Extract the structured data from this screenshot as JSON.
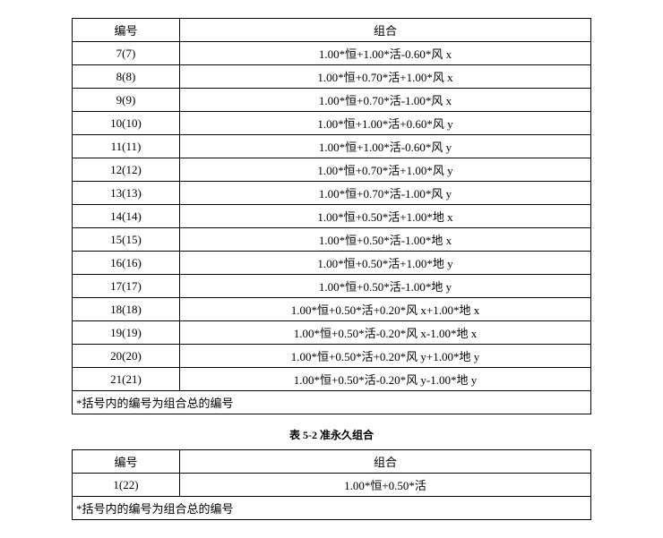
{
  "table1": {
    "header_id": "编号",
    "header_combo": "组合",
    "rows": [
      {
        "id": "7(7)",
        "combo": "1.00*恒+1.00*活-0.60*风 x"
      },
      {
        "id": "8(8)",
        "combo": "1.00*恒+0.70*活+1.00*风 x"
      },
      {
        "id": "9(9)",
        "combo": "1.00*恒+0.70*活-1.00*风 x"
      },
      {
        "id": "10(10)",
        "combo": "1.00*恒+1.00*活+0.60*风 y"
      },
      {
        "id": "11(11)",
        "combo": "1.00*恒+1.00*活-0.60*风 y"
      },
      {
        "id": "12(12)",
        "combo": "1.00*恒+0.70*活+1.00*风 y"
      },
      {
        "id": "13(13)",
        "combo": "1.00*恒+0.70*活-1.00*风 y"
      },
      {
        "id": "14(14)",
        "combo": "1.00*恒+0.50*活+1.00*地 x"
      },
      {
        "id": "15(15)",
        "combo": "1.00*恒+0.50*活-1.00*地 x"
      },
      {
        "id": "16(16)",
        "combo": "1.00*恒+0.50*活+1.00*地 y"
      },
      {
        "id": "17(17)",
        "combo": "1.00*恒+0.50*活-1.00*地 y"
      },
      {
        "id": "18(18)",
        "combo": "1.00*恒+0.50*活+0.20*风 x+1.00*地 x"
      },
      {
        "id": "19(19)",
        "combo": "1.00*恒+0.50*活-0.20*风 x-1.00*地 x"
      },
      {
        "id": "20(20)",
        "combo": "1.00*恒+0.50*活+0.20*风 y+1.00*地 y"
      },
      {
        "id": "21(21)",
        "combo": "1.00*恒+0.50*活-0.20*风 y-1.00*地 y"
      }
    ],
    "footnote": "*括号内的编号为组合总的编号"
  },
  "caption2": "表 5-2 准永久组合",
  "table2": {
    "header_id": "编号",
    "header_combo": "组合",
    "rows": [
      {
        "id": "1(22)",
        "combo": "1.00*恒+0.50*活"
      }
    ],
    "footnote": "*括号内的编号为组合总的编号"
  }
}
